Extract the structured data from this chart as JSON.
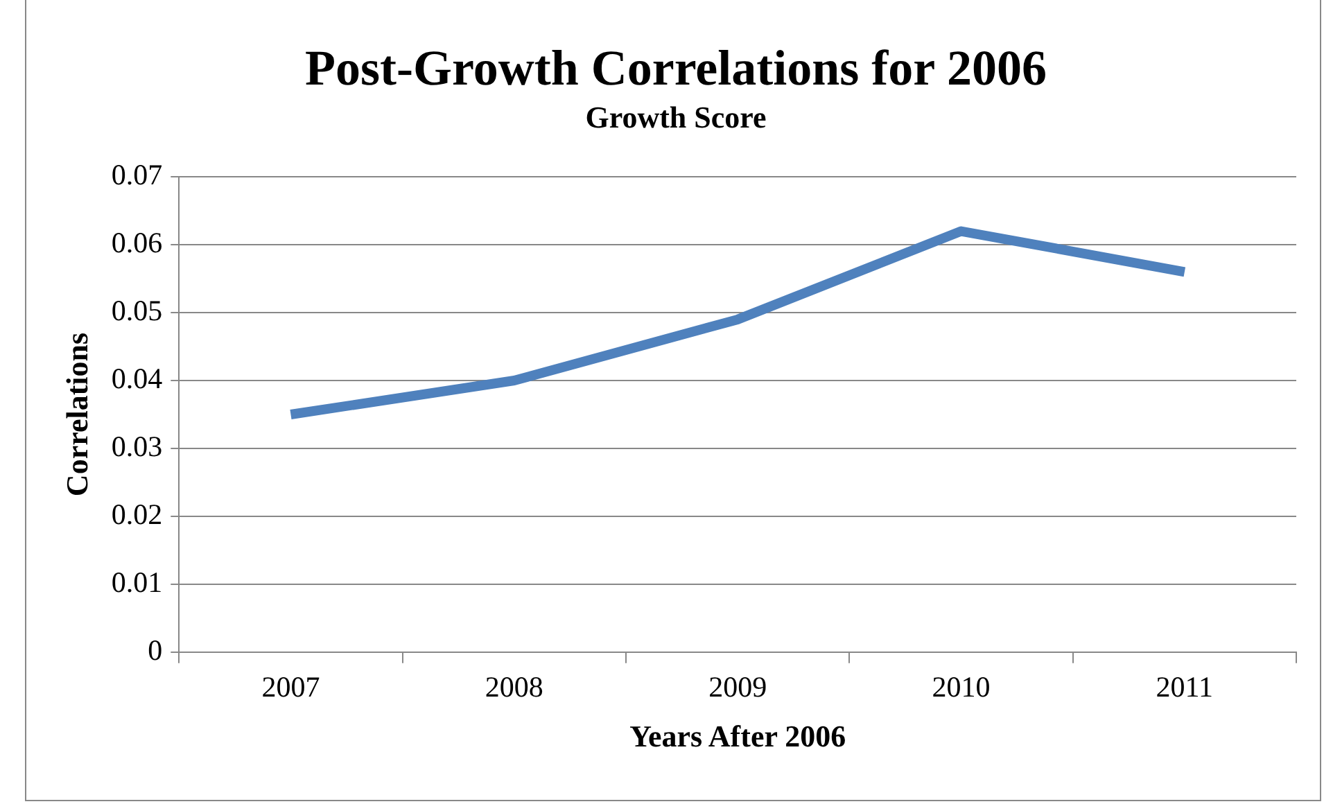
{
  "chart_data": {
    "type": "line",
    "title": "Post-Growth Correlations for 2006",
    "subtitle": "Growth Score",
    "xlabel": "Years After 2006",
    "ylabel": "Correlations",
    "categories": [
      "2007",
      "2008",
      "2009",
      "2010",
      "2011"
    ],
    "series": [
      {
        "color": "#4f81bd",
        "values": [
          0.035,
          0.04,
          0.049,
          0.062,
          0.056
        ]
      }
    ],
    "ylim": [
      0,
      0.07
    ],
    "yticks": [
      0,
      0.01,
      0.02,
      0.03,
      0.04,
      0.05,
      0.06,
      0.07
    ],
    "grid": "y",
    "legend": false,
    "marker": "none",
    "line_style": "solid"
  }
}
